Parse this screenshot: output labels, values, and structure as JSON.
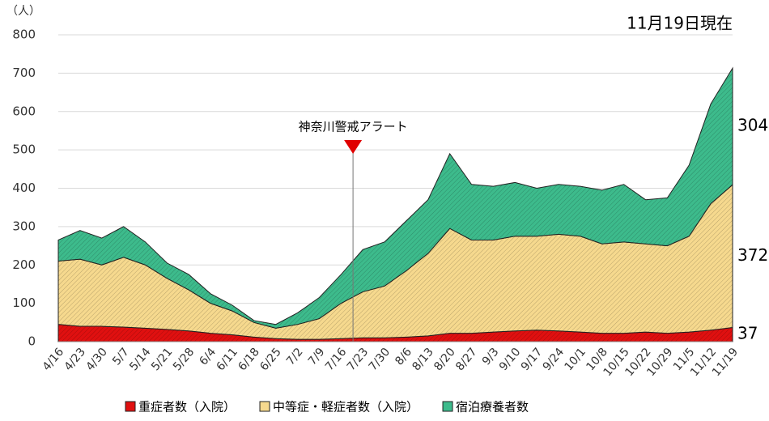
{
  "chart_data": {
    "type": "stacked-area",
    "title": "11月19日現在",
    "y_label": "（人）",
    "annotation": {
      "text": "神奈川警戒アラート"
    },
    "categories": [
      "4/16",
      "4/23",
      "4/30",
      "5/7",
      "5/14",
      "5/21",
      "5/28",
      "6/4",
      "6/11",
      "6/18",
      "6/25",
      "7/2",
      "7/9",
      "7/16",
      "7/23",
      "7/30",
      "8/6",
      "8/13",
      "8/20",
      "8/27",
      "9/3",
      "9/10",
      "9/17",
      "9/24",
      "10/1",
      "10/8",
      "10/15",
      "10/22",
      "10/29",
      "11/5",
      "11/12",
      "11/19"
    ],
    "series": [
      {
        "name": "重症者数（入院）",
        "color": "#e01010",
        "values": [
          45,
          40,
          40,
          38,
          35,
          32,
          28,
          22,
          18,
          12,
          8,
          6,
          6,
          8,
          10,
          10,
          12,
          15,
          22,
          22,
          25,
          28,
          30,
          28,
          25,
          22,
          22,
          25,
          22,
          25,
          30,
          37
        ]
      },
      {
        "name": "中等症・軽症者数（入院）",
        "color": "#f6d98e",
        "values": [
          165,
          175,
          160,
          182,
          165,
          133,
          107,
          78,
          62,
          38,
          27,
          39,
          54,
          92,
          120,
          135,
          173,
          215,
          273,
          243,
          240,
          247,
          245,
          252,
          250,
          233,
          238,
          230,
          228,
          250,
          330,
          372
        ]
      },
      {
        "name": "宿泊療養者数",
        "color": "#3dbb8c",
        "values": [
          55,
          75,
          70,
          80,
          60,
          40,
          40,
          25,
          15,
          5,
          10,
          30,
          55,
          75,
          110,
          115,
          130,
          140,
          195,
          145,
          140,
          140,
          125,
          130,
          130,
          140,
          150,
          115,
          125,
          185,
          260,
          304
        ]
      }
    ],
    "ylim": [
      0,
      800
    ],
    "yticks": [
      0,
      100,
      200,
      300,
      400,
      500,
      600,
      700,
      800
    ],
    "grid": true
  }
}
